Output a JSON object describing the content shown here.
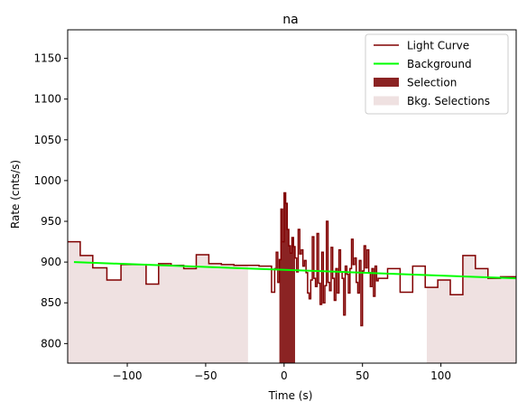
{
  "chart_data": {
    "type": "line",
    "title": "na",
    "xlabel": "Time (s)",
    "ylabel": "Rate (cnts/s)",
    "xlim": [
      -138,
      148
    ],
    "ylim": [
      776,
      1185
    ],
    "xticks": [
      -100,
      -50,
      0,
      50,
      100
    ],
    "yticks": [
      800,
      850,
      900,
      950,
      1000,
      1050,
      1100,
      1150
    ],
    "grid": false,
    "legend_position": "top-right",
    "legend": [
      {
        "label": "Light Curve",
        "kind": "line",
        "color": "#800000"
      },
      {
        "label": "Background",
        "kind": "line",
        "color": "#00ff00"
      },
      {
        "label": "Selection",
        "kind": "patch",
        "color": "#8b2323"
      },
      {
        "label": "Bkg. Selections",
        "kind": "patch",
        "color": "#efe1e1"
      }
    ],
    "background_model": {
      "x": [
        -134,
        148
      ],
      "y": [
        900,
        880
      ]
    },
    "selection": {
      "x_start": -3,
      "x_end": 7
    },
    "bkg_selections": [
      {
        "x_start": -138,
        "x_end": -23
      },
      {
        "x_start": 91,
        "x_end": 148
      }
    ],
    "light_curve": {
      "x": [
        -138,
        -130,
        -122,
        -113,
        -104,
        -96,
        -88,
        -80,
        -72,
        -64,
        -56,
        -48,
        -40,
        -32,
        -24,
        -16,
        -8,
        -6,
        -5,
        -4,
        -3,
        -2,
        -1,
        0,
        1,
        2,
        3,
        4,
        5,
        6,
        7,
        8,
        9,
        10,
        11,
        12,
        13,
        14,
        15,
        16,
        17,
        18,
        19,
        20,
        21,
        22,
        23,
        24,
        25,
        26,
        27,
        28,
        29,
        30,
        31,
        32,
        33,
        34,
        35,
        36,
        37,
        38,
        39,
        40,
        41,
        42,
        43,
        44,
        45,
        46,
        47,
        48,
        49,
        50,
        51,
        52,
        53,
        54,
        55,
        56,
        57,
        58,
        59,
        60,
        66,
        74,
        82,
        90,
        98,
        106,
        114,
        122,
        130,
        138,
        146
      ],
      "y": [
        925,
        908,
        893,
        878,
        897,
        897,
        873,
        898,
        896,
        892,
        909,
        898,
        897,
        896,
        896,
        895,
        863,
        892,
        912,
        875,
        903,
        965,
        925,
        985,
        972,
        940,
        920,
        911,
        930,
        919,
        905,
        888,
        940,
        910,
        915,
        895,
        902,
        887,
        862,
        855,
        878,
        931,
        880,
        870,
        935,
        874,
        848,
        912,
        850,
        871,
        950,
        875,
        865,
        918,
        880,
        853,
        892,
        862,
        915,
        888,
        880,
        835,
        895,
        885,
        862,
        892,
        928,
        897,
        905,
        875,
        862,
        902,
        822,
        889,
        920,
        893,
        915,
        887,
        870,
        892,
        858,
        895,
        877,
        880,
        892,
        863,
        895,
        869,
        878,
        860,
        908,
        892,
        880,
        882,
        882
      ]
    }
  }
}
